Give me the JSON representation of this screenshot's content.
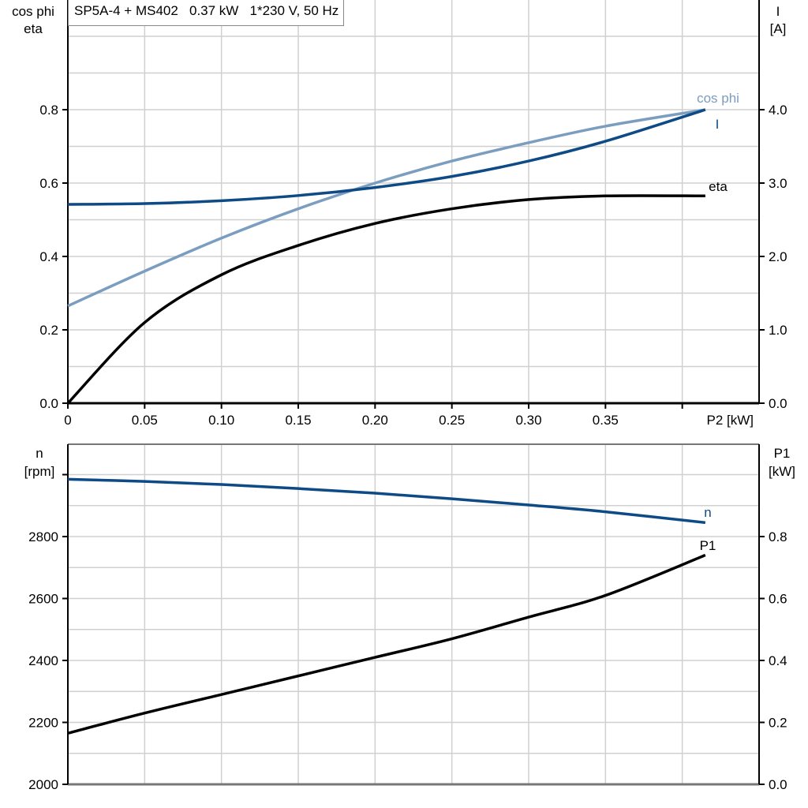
{
  "title": "SP5A-4 + MS402   0.37 kW   1*230 V, 50 Hz",
  "colors": {
    "cos_phi": "#7b9dbf",
    "current": "#0d4a86",
    "eta": "#000000",
    "speed": "#0d4a86",
    "p1": "#000000",
    "grid": "#d0d0d0"
  },
  "top_chart": {
    "left_axis_title_line1": "cos phi",
    "left_axis_title_line2": "eta",
    "right_axis_title_line1": "I",
    "right_axis_title_line2": "[A]",
    "x_axis_title": "P2 [kW]",
    "x_ticks": [
      "0",
      "0.05",
      "0.10",
      "0.15",
      "0.20",
      "0.25",
      "0.30",
      "0.35"
    ],
    "left_ticks": [
      "0.0",
      "0.2",
      "0.4",
      "0.6",
      "0.8"
    ],
    "right_ticks": [
      "0.0",
      "1.0",
      "2.0",
      "3.0",
      "4.0"
    ],
    "labels": {
      "cos_phi": "cos phi",
      "current": "I",
      "eta": "eta"
    }
  },
  "bottom_chart": {
    "left_axis_title_line1": "n",
    "left_axis_title_line2": "[rpm]",
    "right_axis_title_line1": "P1",
    "right_axis_title_line2": "[kW]",
    "left_ticks": [
      "2000",
      "2200",
      "2400",
      "2600",
      "2800"
    ],
    "right_ticks": [
      "0.0",
      "0.2",
      "0.4",
      "0.6",
      "0.8"
    ],
    "labels": {
      "speed": "n",
      "p1": "P1"
    }
  },
  "chart_data": [
    {
      "type": "line",
      "title": "SP5A-4 + MS402   0.37 kW   1*230 V, 50 Hz",
      "xlabel": "P2 [kW]",
      "ylabel": "cos phi / eta",
      "y2label": "I [A]",
      "xlim": [
        0,
        0.45
      ],
      "ylim": [
        0,
        1.1
      ],
      "y2lim": [
        0,
        5.5
      ],
      "grid": true,
      "x": [
        0,
        0.05,
        0.1,
        0.15,
        0.2,
        0.25,
        0.3,
        0.35,
        0.415
      ],
      "series": [
        {
          "name": "cos phi",
          "axis": "left",
          "values": [
            0.265,
            0.36,
            0.45,
            0.53,
            0.6,
            0.66,
            0.71,
            0.755,
            0.8
          ]
        },
        {
          "name": "eta",
          "axis": "left",
          "values": [
            0.0,
            0.22,
            0.35,
            0.43,
            0.49,
            0.53,
            0.555,
            0.565,
            0.565
          ]
        },
        {
          "name": "I",
          "axis": "right",
          "values": [
            2.71,
            2.72,
            2.76,
            2.83,
            2.94,
            3.09,
            3.3,
            3.57,
            4.0
          ]
        }
      ]
    },
    {
      "type": "line",
      "xlabel": "P2 [kW]",
      "ylabel": "n [rpm]",
      "y2label": "P1 [kW]",
      "xlim": [
        0,
        0.45
      ],
      "ylim": [
        2000,
        3100
      ],
      "y2lim": [
        0,
        1.1
      ],
      "grid": true,
      "x": [
        0,
        0.05,
        0.1,
        0.15,
        0.2,
        0.25,
        0.3,
        0.35,
        0.415
      ],
      "series": [
        {
          "name": "n",
          "axis": "left",
          "values": [
            2985,
            2978,
            2968,
            2955,
            2940,
            2922,
            2902,
            2880,
            2845
          ]
        },
        {
          "name": "P1",
          "axis": "right",
          "values": [
            0.165,
            0.23,
            0.29,
            0.35,
            0.41,
            0.47,
            0.54,
            0.61,
            0.74
          ]
        }
      ]
    }
  ]
}
